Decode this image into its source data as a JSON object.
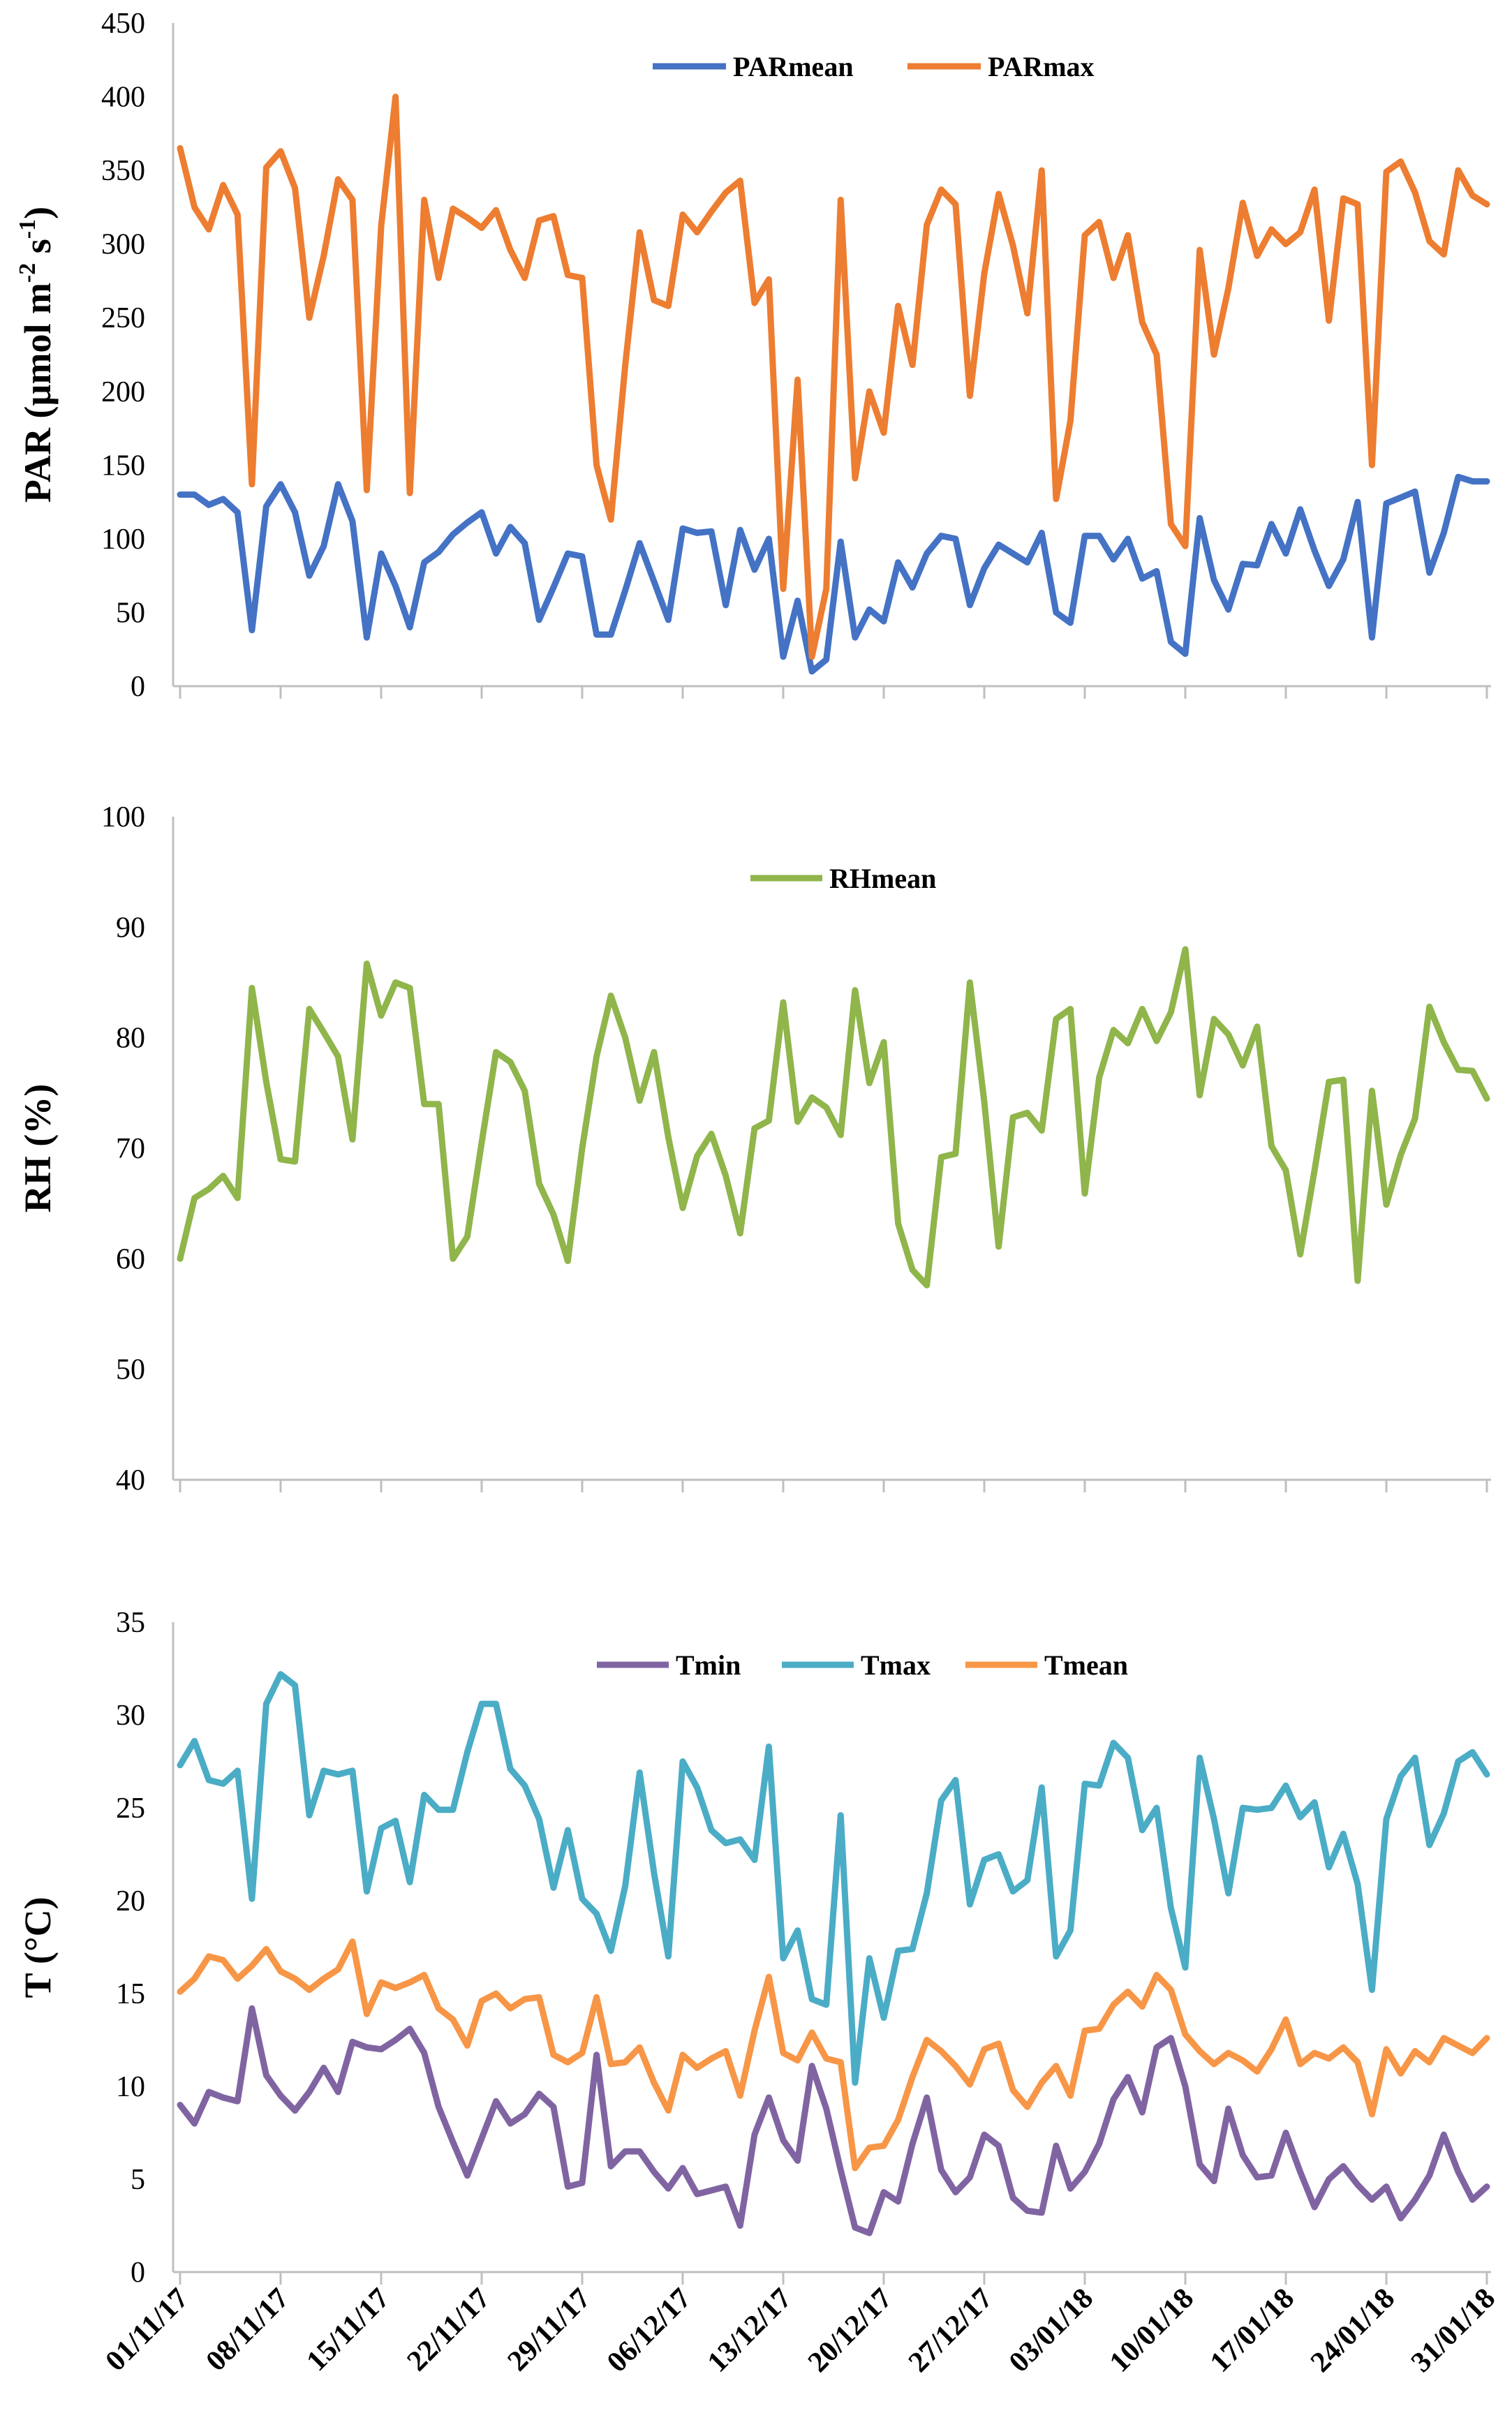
{
  "figure": {
    "x_tick_labels": [
      "01/11/17",
      "08/11/17",
      "15/11/17",
      "22/11/17",
      "29/11/17",
      "06/12/17",
      "13/12/17",
      "20/12/17",
      "27/12/17",
      "03/01/18",
      "10/01/18",
      "17/01/18",
      "24/01/18",
      "31/01/18"
    ]
  },
  "chart_data": [
    {
      "type": "line",
      "title": "",
      "ylabel": "PAR (µmol m-2 s-1)",
      "ylabel_main": "PAR (µmol m",
      "ylabel_sup1": "-2",
      "ylabel_mid": " s",
      "ylabel_sup2": "-1",
      "ylabel_end": ")",
      "ylim": [
        0,
        450
      ],
      "yticks": [
        "0",
        "50",
        "100",
        "150",
        "200",
        "250",
        "300",
        "350",
        "400",
        "450"
      ],
      "legend": "top-center",
      "x_days_range": [
        0,
        91
      ],
      "series": [
        {
          "name": "PARmean",
          "color": "#4472c4",
          "values": [
            130,
            130,
            123,
            127,
            118,
            38,
            122,
            137,
            118,
            75,
            95,
            137,
            112,
            33,
            90,
            68,
            40,
            84,
            91,
            103,
            111,
            118,
            90,
            108,
            97,
            45,
            67,
            90,
            88,
            35,
            35,
            65,
            97,
            71,
            45,
            107,
            104,
            105,
            55,
            106,
            79,
            100,
            20,
            58,
            10,
            18,
            98,
            33,
            52,
            44,
            84,
            67,
            90,
            102,
            100,
            55,
            80,
            96,
            90,
            84,
            104,
            50,
            43,
            102,
            102,
            86,
            100,
            73,
            78,
            30,
            22,
            114,
            72,
            52,
            83,
            82,
            110,
            90,
            120,
            92,
            68,
            86,
            125,
            33,
            124,
            128,
            132,
            77,
            104,
            142,
            139,
            139
          ]
        },
        {
          "name": "PARmax",
          "color": "#ed7d31",
          "values": [
            365,
            325,
            310,
            340,
            320,
            137,
            352,
            363,
            338,
            250,
            292,
            344,
            330,
            133,
            312,
            400,
            131,
            330,
            277,
            324,
            318,
            311,
            323,
            296,
            277,
            316,
            319,
            279,
            277,
            150,
            113,
            218,
            308,
            262,
            258,
            320,
            308,
            322,
            335,
            343,
            260,
            276,
            66,
            208,
            20,
            66,
            330,
            141,
            200,
            172,
            258,
            218,
            313,
            337,
            327,
            197,
            280,
            334,
            299,
            253,
            350,
            127,
            180,
            306,
            315,
            277,
            306,
            247,
            225,
            110,
            95,
            296,
            225,
            270,
            328,
            292,
            310,
            300,
            308,
            337,
            248,
            331,
            327,
            150,
            349,
            356,
            335,
            302,
            293,
            350,
            333,
            327
          ]
        }
      ]
    },
    {
      "type": "line",
      "title": "",
      "ylabel": "RH (%)",
      "ylim": [
        40,
        100
      ],
      "yticks": [
        "40",
        "50",
        "60",
        "70",
        "80",
        "90",
        "100"
      ],
      "legend": "top-center",
      "x_days_range": [
        0,
        91
      ],
      "series": [
        {
          "name": "RHmean",
          "color": "#8fb54b",
          "values": [
            60,
            65.5,
            66.3,
            67.5,
            65.5,
            84.5,
            76,
            69,
            68.8,
            82.6,
            80.5,
            78.3,
            70.8,
            86.7,
            82,
            85,
            84.5,
            74,
            74,
            60,
            62,
            70.5,
            78.7,
            77.8,
            75.2,
            66.8,
            64,
            59.8,
            70,
            78.3,
            83.8,
            80,
            74.3,
            78.7,
            71,
            64.6,
            69.3,
            71.3,
            67.5,
            62.3,
            71.8,
            72.5,
            83.2,
            72.4,
            74.6,
            73.7,
            71.2,
            84.3,
            75.9,
            79.6,
            63.2,
            59,
            57.6,
            69.2,
            69.5,
            85,
            74.2,
            61.1,
            72.8,
            73.2,
            71.6,
            81.7,
            82.6,
            65.9,
            76.4,
            80.7,
            79.5,
            82.6,
            79.7,
            82.3,
            88,
            74.8,
            81.7,
            80.3,
            77.5,
            81,
            70.2,
            68,
            60.4,
            68,
            76,
            76.2,
            58,
            75.2,
            64.9,
            69.4,
            72.7,
            82.8,
            79.6,
            77.1,
            77,
            74.5
          ]
        }
      ]
    },
    {
      "type": "line",
      "title": "",
      "ylabel": "T (°C)",
      "ylim": [
        0,
        35
      ],
      "yticks": [
        "0",
        "5",
        "10",
        "15",
        "20",
        "25",
        "30",
        "35"
      ],
      "legend": "top-center",
      "x_days_range": [
        0,
        91
      ],
      "series": [
        {
          "name": "Tmin",
          "color": "#8064a2",
          "values": [
            9,
            8,
            9.7,
            9.4,
            9.2,
            14.2,
            10.6,
            9.5,
            8.7,
            9.7,
            11,
            9.7,
            12.4,
            12.1,
            12,
            12.5,
            13.1,
            11.8,
            8.9,
            7,
            5.2,
            7.2,
            9.2,
            8,
            8.5,
            9.6,
            8.9,
            4.6,
            4.8,
            11.7,
            5.7,
            6.5,
            6.5,
            5.4,
            4.5,
            5.6,
            4.2,
            4.4,
            4.6,
            2.5,
            7.4,
            9.4,
            7.1,
            6,
            11.1,
            8.8,
            5.5,
            2.4,
            2.1,
            4.3,
            3.8,
            6.9,
            9.4,
            5.5,
            4.3,
            5.1,
            7.4,
            6.8,
            4,
            3.3,
            3.2,
            6.8,
            4.5,
            5.4,
            6.9,
            9.3,
            10.5,
            8.6,
            12.1,
            12.6,
            10,
            5.8,
            4.9,
            8.8,
            6.3,
            5.1,
            5.2,
            7.5,
            5.4,
            3.5,
            5,
            5.7,
            4.7,
            3.9,
            4.6,
            2.9,
            3.9,
            5.2,
            7.4,
            5.4,
            3.9,
            4.6
          ]
        },
        {
          "name": "Tmax",
          "color": "#4bacc6",
          "values": [
            27.3,
            28.6,
            26.5,
            26.3,
            27,
            20.1,
            30.6,
            32.2,
            31.6,
            24.6,
            27,
            26.8,
            27,
            20.5,
            23.9,
            24.3,
            21,
            25.7,
            24.9,
            24.9,
            28,
            30.6,
            30.6,
            27.1,
            26.2,
            24.4,
            20.7,
            23.8,
            20.1,
            19.3,
            17.3,
            20.8,
            26.9,
            21.5,
            17,
            27.5,
            26.1,
            23.8,
            23.1,
            23.3,
            22.2,
            28.3,
            16.9,
            18.4,
            14.7,
            14.4,
            24.6,
            10.2,
            16.9,
            13.7,
            17.3,
            17.4,
            20.4,
            25.4,
            26.5,
            19.8,
            22.2,
            22.5,
            20.5,
            21.1,
            26.1,
            17,
            18.4,
            26.3,
            26.2,
            28.5,
            27.7,
            23.8,
            25,
            19.6,
            16.4,
            27.7,
            24.4,
            20.4,
            25,
            24.9,
            25,
            26.2,
            24.5,
            25.3,
            21.8,
            23.6,
            20.9,
            15.2,
            24.4,
            26.7,
            27.7,
            23,
            24.7,
            27.5,
            28,
            26.8
          ]
        },
        {
          "name": "Tmean",
          "color": "#f79646",
          "values": [
            15.1,
            15.8,
            17,
            16.8,
            15.8,
            16.5,
            17.4,
            16.2,
            15.8,
            15.2,
            15.8,
            16.3,
            17.8,
            13.9,
            15.6,
            15.3,
            15.6,
            16,
            14.2,
            13.6,
            12.2,
            14.6,
            15,
            14.2,
            14.7,
            14.8,
            11.7,
            11.3,
            11.8,
            14.8,
            11.2,
            11.3,
            12.1,
            10.2,
            8.7,
            11.7,
            11,
            11.5,
            11.9,
            9.5,
            13,
            15.9,
            11.8,
            11.4,
            12.9,
            11.5,
            11.3,
            5.6,
            6.7,
            6.8,
            8.2,
            10.5,
            12.5,
            11.9,
            11.1,
            10.1,
            12,
            12.3,
            9.8,
            8.9,
            10.2,
            11.1,
            9.5,
            13,
            13.1,
            14.4,
            15.1,
            14.3,
            16,
            15.2,
            12.8,
            11.9,
            11.2,
            11.8,
            11.4,
            10.8,
            12,
            13.6,
            11.2,
            11.8,
            11.5,
            12.1,
            11.3,
            8.5,
            12,
            10.7,
            11.9,
            11.3,
            12.6,
            12.2,
            11.8,
            12.6
          ]
        }
      ]
    }
  ]
}
